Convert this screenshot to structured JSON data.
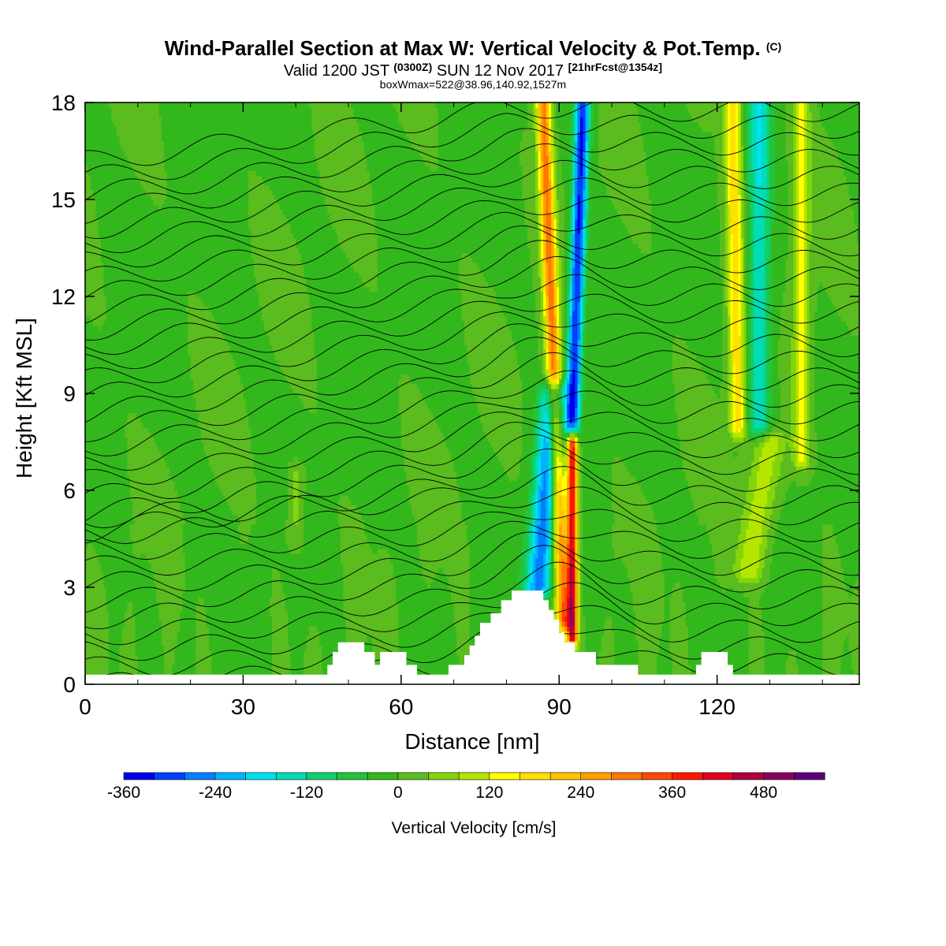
{
  "title": {
    "main": "Wind-Parallel Section at Max W: Vertical Velocity & Pot.Temp.",
    "main_tag": "(C)",
    "valid_a": "Valid 1200 JST",
    "valid_tz": "(0300Z)",
    "valid_b": "SUN 12 Nov 2017",
    "valid_fcst": "[21hrFcst@1354z]",
    "box": "boxWmax=522@38.96,140.92,1527m"
  },
  "colors": {
    "palette": [
      "#0000ee",
      "#0040ff",
      "#0080ff",
      "#00b4ff",
      "#00e0f0",
      "#00dcb4",
      "#10d06e",
      "#22c43a",
      "#32b81c",
      "#5abc1e",
      "#84d40c",
      "#b4e600",
      "#ffff00",
      "#ffe000",
      "#ffc400",
      "#ffa000",
      "#ff7800",
      "#ff4800",
      "#ff1800",
      "#e00020",
      "#b00040",
      "#880060",
      "#600080"
    ],
    "terrain": "#ffffff",
    "contour": "#000000"
  },
  "chart_data": {
    "type": "heatmap",
    "xlabel": "Distance [nm]",
    "ylabel": "Height [Kft MSL]",
    "xlim": [
      0,
      147
    ],
    "ylim": [
      0,
      18
    ],
    "x_ticks": [
      "0",
      "30",
      "60",
      "90",
      "120"
    ],
    "y_ticks": [
      "0",
      "3",
      "6",
      "9",
      "12",
      "15",
      "18"
    ],
    "colorbar": {
      "label": "Vertical Velocity [cm/s]",
      "levels_min": -360,
      "levels_step": 40,
      "tick_labels": [
        "-360",
        "-240",
        "-120",
        "0",
        "120",
        "240",
        "360",
        "480"
      ]
    },
    "terrain_kft": [
      [
        0,
        0.3
      ],
      [
        45,
        0.3
      ],
      [
        46,
        0.6
      ],
      [
        47,
        1.0
      ],
      [
        48,
        1.3
      ],
      [
        52,
        1.3
      ],
      [
        53,
        1.0
      ],
      [
        55,
        0.6
      ],
      [
        56,
        1.0
      ],
      [
        60,
        1.0
      ],
      [
        61,
        0.6
      ],
      [
        63,
        0.3
      ],
      [
        68,
        0.3
      ],
      [
        69,
        0.6
      ],
      [
        72,
        0.9
      ],
      [
        73,
        1.2
      ],
      [
        74,
        1.5
      ],
      [
        75,
        1.9
      ],
      [
        77,
        2.2
      ],
      [
        79,
        2.6
      ],
      [
        81,
        2.9
      ],
      [
        86,
        2.9
      ],
      [
        87,
        2.6
      ],
      [
        88,
        2.3
      ],
      [
        89,
        2.0
      ],
      [
        90,
        1.6
      ],
      [
        91,
        1.3
      ],
      [
        92,
        1.3
      ],
      [
        93,
        1.0
      ],
      [
        96,
        1.0
      ],
      [
        97,
        0.6
      ],
      [
        104,
        0.6
      ],
      [
        105,
        0.3
      ],
      [
        115,
        0.3
      ],
      [
        116,
        0.6
      ],
      [
        117,
        1.0
      ],
      [
        121,
        1.0
      ],
      [
        122,
        0.6
      ],
      [
        123,
        0.3
      ],
      [
        147,
        0.3
      ]
    ],
    "w_features": [
      {
        "x_base": 90.8,
        "x_top": 87,
        "z_bot": 2,
        "z_top": 18,
        "width_nm": 1.4,
        "w_max": 300
      },
      {
        "x_base": 92.5,
        "x_top": 92.5,
        "z_bot": 1.5,
        "z_top": 7.5,
        "width_nm": 1.0,
        "w_max": 420
      },
      {
        "x_base": 86,
        "x_top": 89,
        "z_bot": 3,
        "z_top": 9,
        "width_nm": 2.5,
        "w_max": -260
      },
      {
        "x_base": 92.5,
        "x_top": 94.5,
        "z_bot": 8,
        "z_top": 18,
        "width_nm": 1.4,
        "w_max": -320
      },
      {
        "x_base": 124,
        "x_top": 123,
        "z_bot": 8,
        "z_top": 18,
        "width_nm": 1.6,
        "w_max": 190
      },
      {
        "x_base": 128,
        "x_top": 128,
        "z_bot": 8,
        "z_top": 18,
        "width_nm": 2.2,
        "w_max": -150
      },
      {
        "x_base": 136,
        "x_top": 136,
        "z_bot": 7,
        "z_top": 18,
        "width_nm": 1.6,
        "w_max": 130
      },
      {
        "x_base": 126,
        "x_top": 130,
        "z_bot": 3.5,
        "z_top": 7.5,
        "width_nm": 3.0,
        "w_max": 110
      },
      {
        "x_base": 40,
        "x_top": 40,
        "z_bot": 4.5,
        "z_top": 6.5,
        "width_nm": 1.5,
        "w_max": 60
      }
    ]
  }
}
